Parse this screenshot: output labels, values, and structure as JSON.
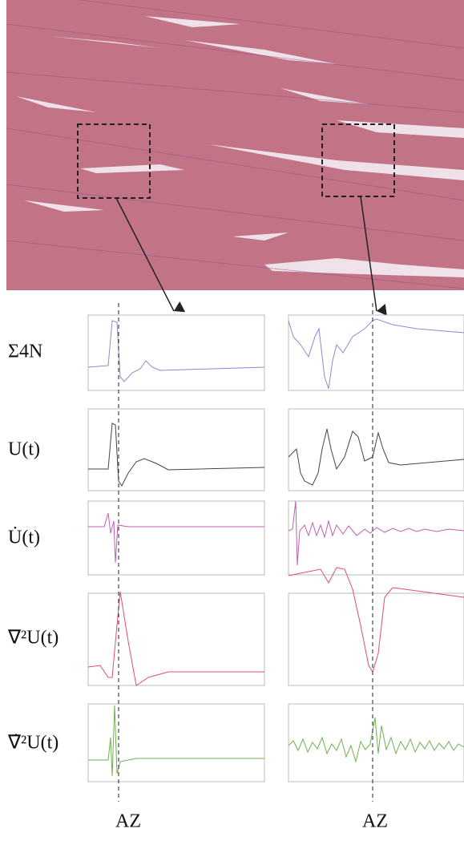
{
  "row_labels": [
    "Σ4N",
    "U(t)",
    "U̇(t)",
    "∇²U(t)",
    "∇̇²U(t)"
  ],
  "az_labels": [
    "AZ",
    "AZ"
  ]
}
